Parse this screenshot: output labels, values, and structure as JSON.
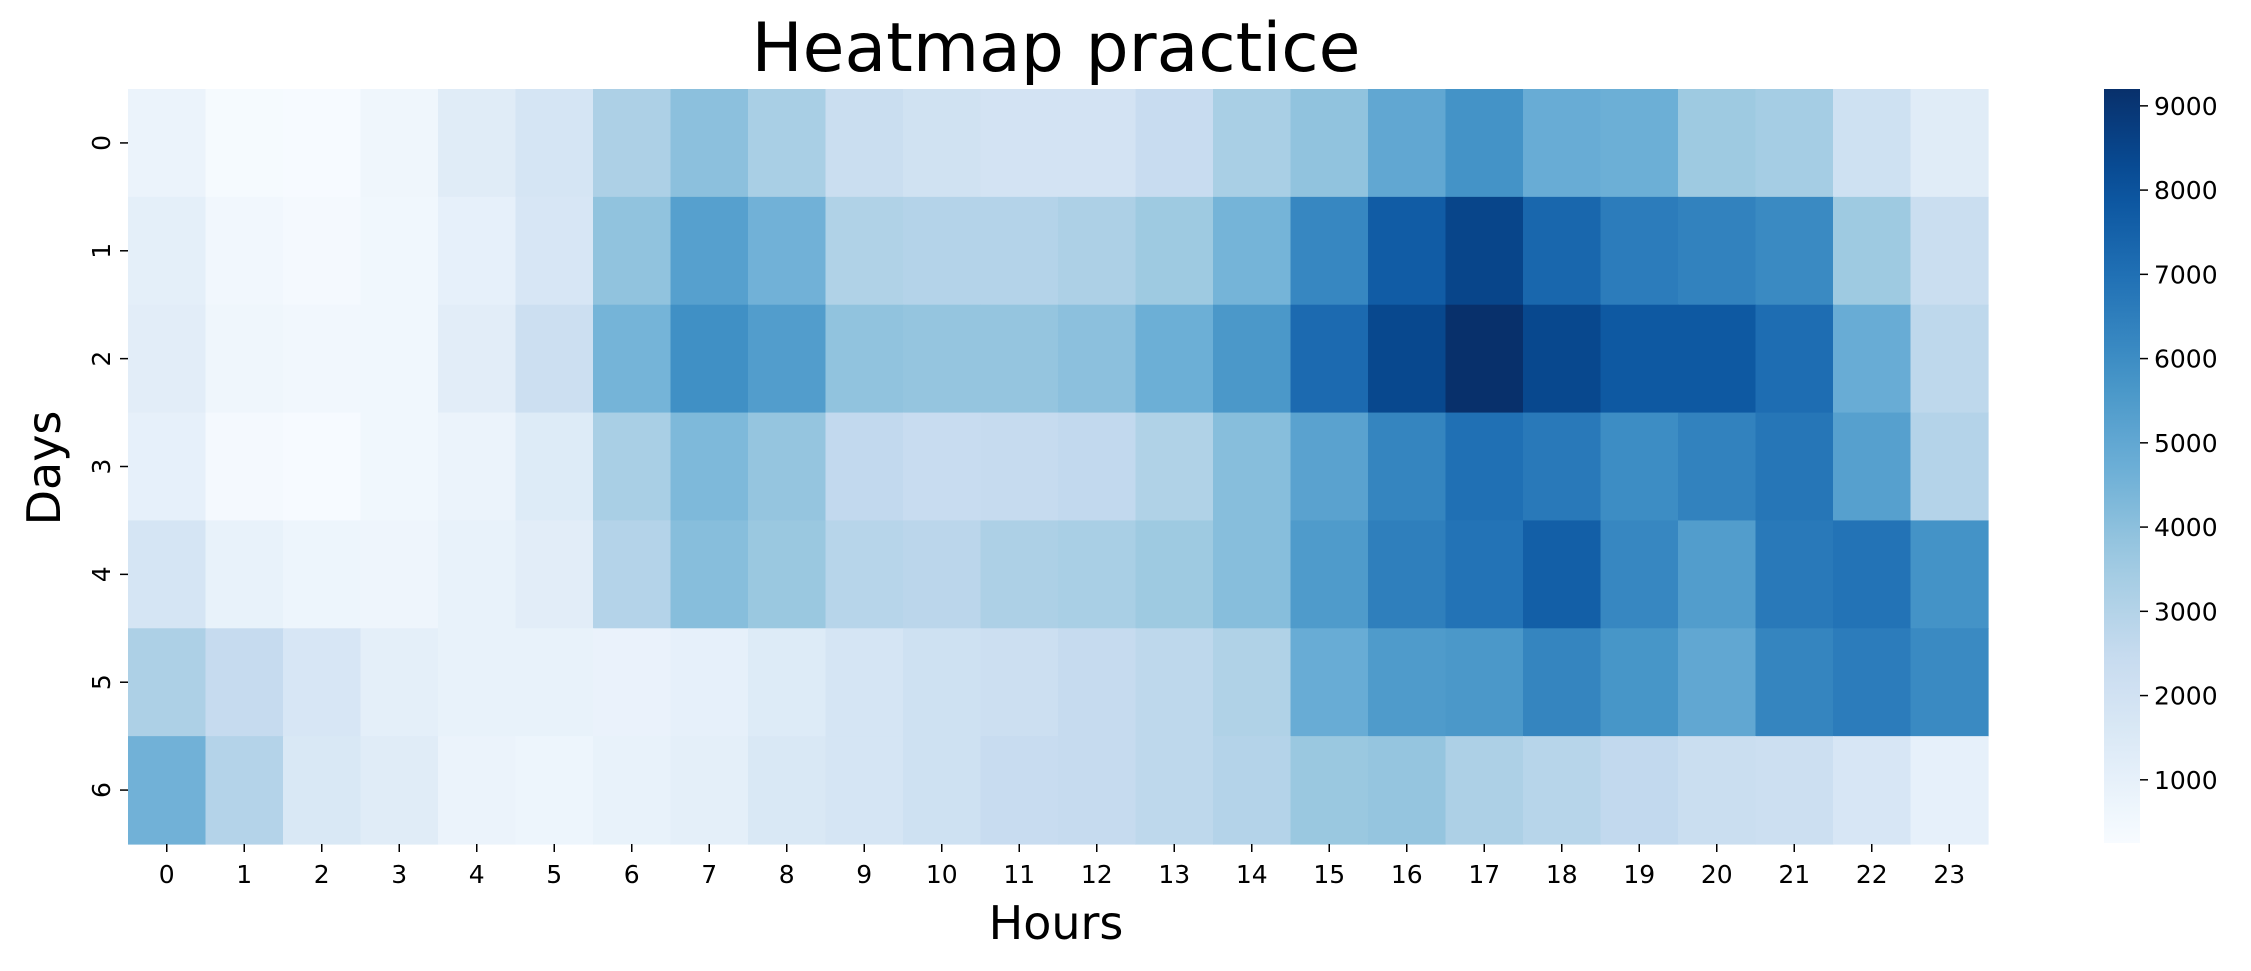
{
  "chart_data": {
    "type": "heatmap",
    "title": "Heatmap practice",
    "xlabel": "Hours",
    "ylabel": "Days",
    "x": [
      "0",
      "1",
      "2",
      "3",
      "4",
      "5",
      "6",
      "7",
      "8",
      "9",
      "10",
      "11",
      "12",
      "13",
      "14",
      "15",
      "16",
      "17",
      "18",
      "19",
      "20",
      "21",
      "22",
      "23"
    ],
    "y": [
      "0",
      "1",
      "2",
      "3",
      "4",
      "5",
      "6"
    ],
    "values": [
      [
        800,
        350,
        300,
        600,
        1300,
        1800,
        3200,
        4000,
        3300,
        2300,
        2000,
        1900,
        1900,
        2400,
        3300,
        3900,
        5000,
        5800,
        4800,
        4700,
        3600,
        3400,
        2100,
        1300
      ],
      [
        1100,
        500,
        400,
        550,
        1000,
        1700,
        3900,
        5300,
        4600,
        3100,
        3000,
        3000,
        3200,
        3600,
        4500,
        6200,
        7700,
        8500,
        7300,
        6600,
        6400,
        6100,
        3600,
        2300
      ],
      [
        1200,
        600,
        500,
        550,
        1200,
        2200,
        4500,
        5900,
        5400,
        3900,
        3800,
        3800,
        4000,
        4700,
        5600,
        7200,
        8400,
        9200,
        8400,
        7800,
        7800,
        7100,
        4800,
        2700
      ],
      [
        1000,
        400,
        300,
        550,
        800,
        1400,
        3300,
        4300,
        3800,
        2600,
        2400,
        2500,
        2600,
        3100,
        4100,
        5200,
        6300,
        7000,
        6700,
        6000,
        6400,
        6800,
        5300,
        3000
      ],
      [
        1800,
        900,
        700,
        650,
        900,
        1200,
        3000,
        4100,
        3700,
        2900,
        2800,
        3200,
        3300,
        3600,
        4100,
        5500,
        6500,
        6900,
        7600,
        6200,
        5400,
        6700,
        6900,
        5800
      ],
      [
        3200,
        2500,
        1700,
        1100,
        900,
        900,
        850,
        1000,
        1400,
        1800,
        2100,
        2200,
        2500,
        2700,
        3100,
        4800,
        5500,
        5600,
        6300,
        5700,
        5000,
        6300,
        6600,
        6100
      ],
      [
        4600,
        3000,
        1600,
        1300,
        800,
        700,
        900,
        1100,
        1600,
        1800,
        2100,
        2400,
        2500,
        2700,
        3000,
        3700,
        3800,
        3200,
        2900,
        2600,
        2300,
        2200,
        1700,
        1000
      ]
    ],
    "vmin": 250,
    "vmax": 9200,
    "colormap": "Blues",
    "colorbar_ticks": [
      1000,
      2000,
      3000,
      4000,
      5000,
      6000,
      7000,
      8000,
      9000
    ]
  }
}
